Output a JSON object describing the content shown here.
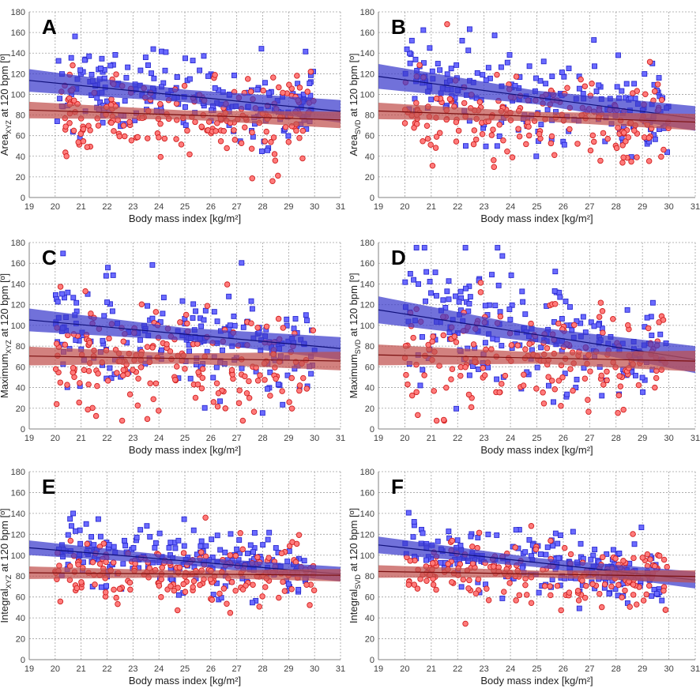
{
  "figure": {
    "colors": {
      "blue_fill": "#6b6bff",
      "blue_edge": "#2a2ad0",
      "blue_band": "#3a3acc",
      "blue_line": "#10107a",
      "red_fill": "#ff7b7b",
      "red_edge": "#d02020",
      "red_band": "#c0504d",
      "red_line": "#7a1010",
      "grid": "#a0a0a0",
      "axis": "#808080"
    }
  },
  "chart_data": [
    {
      "type": "scatter",
      "panel": "A",
      "title": "",
      "xlabel": "Body mass index [kg/m²]",
      "ylabel_main": "Area",
      "ylabel_sub": "XYZ",
      "ylabel_suffix": " at 120 bpm [º]",
      "xlim": [
        19,
        31
      ],
      "ylim": [
        0,
        180
      ],
      "xticks": [
        "19",
        "20",
        "21",
        "22",
        "23",
        "24",
        "25",
        "26",
        "27",
        "28",
        "29",
        "30",
        "31"
      ],
      "yticks": [
        "0",
        "20",
        "40",
        "60",
        "80",
        "100",
        "120",
        "140",
        "160",
        "180"
      ],
      "series": [
        {
          "name": "blue",
          "marker": "square",
          "fit": {
            "x": [
              20,
              30
            ],
            "y": [
              111,
              86
            ]
          },
          "ci": 11,
          "mean": 98,
          "sd": 24
        },
        {
          "name": "red",
          "marker": "circle",
          "fit": {
            "x": [
              20,
              30
            ],
            "y": [
              84,
              76
            ]
          },
          "ci": 8,
          "mean": 80,
          "sd": 24
        }
      ]
    },
    {
      "type": "scatter",
      "panel": "B",
      "title": "",
      "xlabel": "Body mass index [kg/m²]",
      "ylabel_main": "Area",
      "ylabel_sub": "SVD",
      "ylabel_suffix": " at 120 bpm [º]",
      "xlim": [
        19,
        31
      ],
      "ylim": [
        0,
        180
      ],
      "xticks": [
        "19",
        "20",
        "21",
        "22",
        "23",
        "24",
        "25",
        "26",
        "27",
        "28",
        "29",
        "30",
        "31"
      ],
      "yticks": [
        "0",
        "20",
        "40",
        "60",
        "80",
        "100",
        "120",
        "140",
        "160",
        "180"
      ],
      "series": [
        {
          "name": "blue",
          "marker": "square",
          "fit": {
            "x": [
              20,
              30
            ],
            "y": [
              114,
              80
            ]
          },
          "ci": 12,
          "mean": 97,
          "sd": 25
        },
        {
          "name": "red",
          "marker": "circle",
          "fit": {
            "x": [
              20,
              30
            ],
            "y": [
              83,
              74
            ]
          },
          "ci": 8,
          "mean": 79,
          "sd": 24
        }
      ]
    },
    {
      "type": "scatter",
      "panel": "C",
      "title": "",
      "xlabel": "Body mass index [kg/m²]",
      "ylabel_main": "Maximum",
      "ylabel_sub": "XYZ",
      "ylabel_suffix": " at 120 bpm [º]",
      "xlim": [
        19,
        31
      ],
      "ylim": [
        0,
        180
      ],
      "xticks": [
        "19",
        "20",
        "21",
        "22",
        "23",
        "24",
        "25",
        "26",
        "27",
        "28",
        "29",
        "30",
        "31"
      ],
      "yticks": [
        "0",
        "20",
        "40",
        "60",
        "80",
        "100",
        "120",
        "140",
        "160",
        "180"
      ],
      "series": [
        {
          "name": "blue",
          "marker": "square",
          "fit": {
            "x": [
              20,
              30
            ],
            "y": [
              103,
              80
            ]
          },
          "ci": 11,
          "mean": 90,
          "sd": 32
        },
        {
          "name": "red",
          "marker": "circle",
          "fit": {
            "x": [
              20,
              30
            ],
            "y": [
              70,
              66
            ]
          },
          "ci": 9,
          "mean": 68,
          "sd": 30
        }
      ]
    },
    {
      "type": "scatter",
      "panel": "D",
      "title": "",
      "xlabel": "Body mass index [kg/m²]",
      "ylabel_main": "Maximum",
      "ylabel_sub": "SVD",
      "ylabel_suffix": " at 120 bpm [º]",
      "xlim": [
        19,
        31
      ],
      "ylim": [
        0,
        180
      ],
      "xticks": [
        "19",
        "20",
        "21",
        "22",
        "23",
        "24",
        "25",
        "26",
        "27",
        "28",
        "29",
        "30",
        "31"
      ],
      "yticks": [
        "0",
        "20",
        "40",
        "60",
        "80",
        "100",
        "120",
        "140",
        "160",
        "180"
      ],
      "series": [
        {
          "name": "blue",
          "marker": "square",
          "fit": {
            "x": [
              20,
              30
            ],
            "y": [
              111,
              71
            ]
          },
          "ci": 13,
          "mean": 90,
          "sd": 36
        },
        {
          "name": "red",
          "marker": "circle",
          "fit": {
            "x": [
              20,
              30
            ],
            "y": [
              71,
              66
            ]
          },
          "ci": 10,
          "mean": 68,
          "sd": 30
        }
      ]
    },
    {
      "type": "scatter",
      "panel": "E",
      "title": "",
      "xlabel": "Body mass index [kg/m²]",
      "ylabel_main": "Integral",
      "ylabel_sub": "XYZ",
      "ylabel_suffix": " at 120 bpm [º]",
      "xlim": [
        19,
        31
      ],
      "ylim": [
        0,
        180
      ],
      "xticks": [
        "19",
        "20",
        "21",
        "22",
        "23",
        "24",
        "25",
        "26",
        "27",
        "28",
        "29",
        "30",
        "31"
      ],
      "yticks": [
        "0",
        "20",
        "40",
        "60",
        "80",
        "100",
        "120",
        "140",
        "160",
        "180"
      ],
      "series": [
        {
          "name": "blue",
          "marker": "square",
          "fit": {
            "x": [
              20,
              30
            ],
            "y": [
              105,
              84
            ]
          },
          "ci": 7,
          "mean": 94,
          "sd": 17
        },
        {
          "name": "red",
          "marker": "circle",
          "fit": {
            "x": [
              20,
              30
            ],
            "y": [
              83,
              81
            ]
          },
          "ci": 6,
          "mean": 82,
          "sd": 17
        }
      ]
    },
    {
      "type": "scatter",
      "panel": "F",
      "title": "",
      "xlabel": "Body mass index [kg/m²]",
      "ylabel_main": "Integral",
      "ylabel_sub": "SVD",
      "ylabel_suffix": " at 120 bpm [º]",
      "xlim": [
        19,
        31
      ],
      "ylim": [
        0,
        180
      ],
      "xticks": [
        "19",
        "20",
        "21",
        "22",
        "23",
        "24",
        "25",
        "26",
        "27",
        "28",
        "29",
        "30",
        "31"
      ],
      "yticks": [
        "0",
        "20",
        "40",
        "60",
        "80",
        "100",
        "120",
        "140",
        "160",
        "180"
      ],
      "series": [
        {
          "name": "blue",
          "marker": "square",
          "fit": {
            "x": [
              20,
              30
            ],
            "y": [
              107,
              79
            ]
          },
          "ci": 8,
          "mean": 93,
          "sd": 18
        },
        {
          "name": "red",
          "marker": "circle",
          "fit": {
            "x": [
              20,
              30
            ],
            "y": [
              84,
              80
            ]
          },
          "ci": 6,
          "mean": 82,
          "sd": 17
        }
      ]
    }
  ]
}
